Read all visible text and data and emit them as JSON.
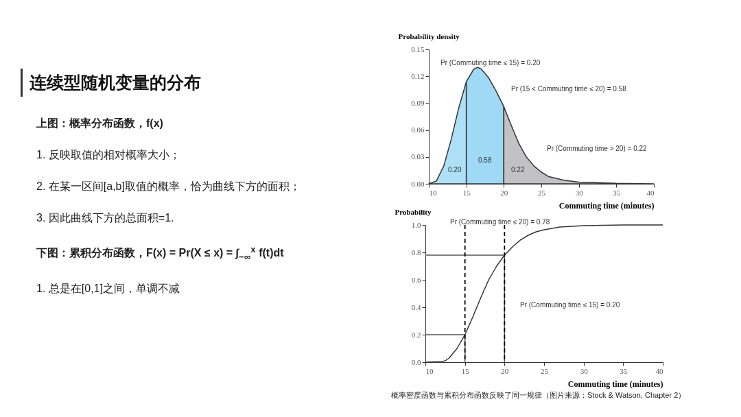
{
  "chart_data": [
    {
      "type": "other",
      "title": "连续型随机变量的分布",
      "annotations": [
        "上图：概率分布函数，f(x)",
        "1.  反映取值的相对概率大小；",
        "2.  在某一区间[a,b]取值的概率，恰为曲线下方的面积；",
        "3.  因此曲线下方的总面积=1.",
        "下图：累积分布函数，F(x) = Pr(X ≤ x) = ∫$_{−∞}$$^{x}$ f(t)dt",
        "1.  总是在[0,1]之间，单调不减"
      ]
    },
    {
      "type": "area",
      "xlabel": "Commuting time (minutes)",
      "ylabel": "Probability density",
      "xlim": [
        10,
        40
      ],
      "xticks": [
        10,
        15,
        20,
        25,
        30,
        35,
        40
      ],
      "ylim": [
        0,
        0.15
      ],
      "yticks": [
        {
          "value": 0,
          "label": "0.00"
        },
        {
          "value": 0.03,
          "label": "0.03"
        },
        {
          "value": 0.06,
          "label": "0.06"
        },
        {
          "value": 0.09,
          "label": "0.09"
        },
        {
          "value": 0.12,
          "label": "0.12"
        },
        {
          "value": 0.15,
          "label": "0.15"
        }
      ],
      "series": [
        {
          "color": "#aee0f7",
          "x": [
            10,
            11,
            12,
            13,
            14,
            15
          ],
          "values": [
            0,
            0.003,
            0.02,
            0.05,
            0.085,
            0.114
          ]
        },
        {
          "color": "#9fd9f5",
          "x": [
            15,
            16,
            16.5,
            17,
            18,
            19,
            20
          ],
          "values": [
            0.114,
            0.128,
            0.13,
            0.128,
            0.118,
            0.103,
            0.086
          ]
        },
        {
          "color": "#c2c2c4",
          "x": [
            20,
            21,
            22,
            23,
            24,
            25,
            26,
            28,
            30,
            35,
            40
          ],
          "values": [
            0.086,
            0.065,
            0.045,
            0.03,
            0.02,
            0.013,
            0.008,
            0.004,
            0.002,
            0.0005,
            0
          ]
        }
      ],
      "annotations": [
        "Pr (Commuting time ≤ 15) = 0.20",
        "Pr (15 < Commuting time ≤ 20) = 0.58",
        "Pr (Commuting time > 20) = 0.22",
        "0.20",
        "0.58",
        "0.22"
      ]
    },
    {
      "type": "line",
      "xlabel": "Commuting time (minutes)",
      "ylabel": "Probability",
      "xlim": [
        10,
        40
      ],
      "xticks": [
        10,
        15,
        20,
        25,
        30,
        35,
        40
      ],
      "ylim": [
        0,
        1
      ],
      "yticks": [
        {
          "value": 0,
          "label": "0.0"
        },
        {
          "value": 0.2,
          "label": "0.2"
        },
        {
          "value": 0.4,
          "label": "0.4"
        },
        {
          "value": 0.6,
          "label": "0.6"
        },
        {
          "value": 0.8,
          "label": "0.8"
        },
        {
          "value": 1,
          "label": "1.0"
        }
      ],
      "series": [
        {
          "color": "#555555",
          "x": [
            10,
            15,
            15
          ],
          "values": [
            0.2,
            0.2,
            0
          ]
        },
        {
          "color": "#555555",
          "x": [
            10,
            20,
            20
          ],
          "values": [
            0.78,
            0.78,
            0
          ]
        },
        {
          "color": "#333333",
          "x": [
            10,
            12,
            12.5,
            13,
            14,
            15,
            16,
            17,
            18,
            19,
            20,
            21,
            22,
            23,
            24,
            25,
            27,
            30,
            35,
            40
          ],
          "values": [
            0,
            0.002,
            0.01,
            0.03,
            0.1,
            0.2,
            0.33,
            0.47,
            0.6,
            0.7,
            0.78,
            0.84,
            0.89,
            0.925,
            0.95,
            0.965,
            0.985,
            0.995,
            1,
            1
          ]
        }
      ],
      "ref_lines": [
        {
          "axis": "x",
          "value": 15,
          "line_style": "dashed",
          "color": "#000000"
        },
        {
          "axis": "x",
          "value": 20,
          "line_style": "dashed",
          "color": "#000000"
        }
      ],
      "annotations": [
        "Pr (Commuting time ≤ 20) = 0.78",
        "Pr (Commuting time ≤ 15) = 0.20",
        "概率密度函数与累积分布函数反映了同一规律（图片来源：Stock  & Watson, Chapter 2）"
      ]
    }
  ]
}
